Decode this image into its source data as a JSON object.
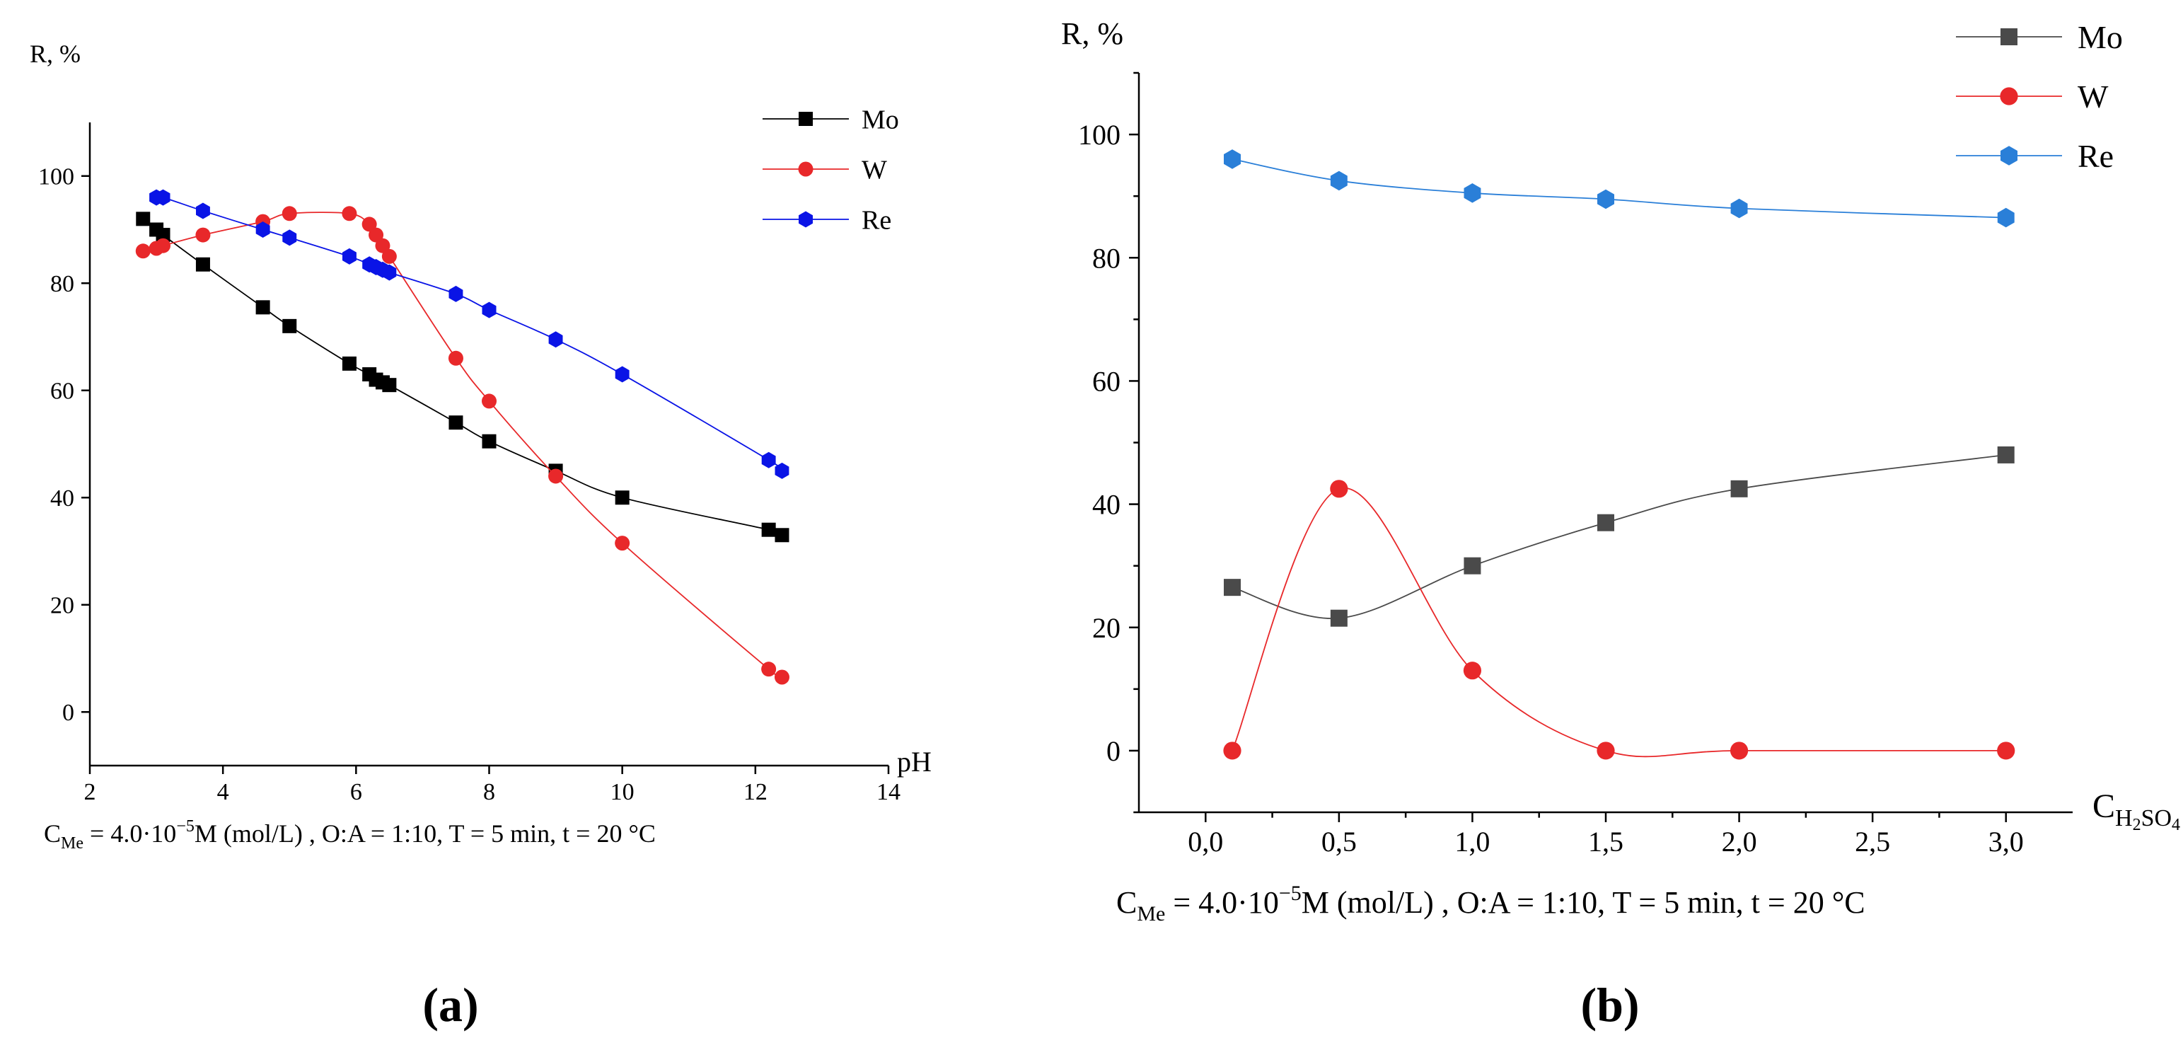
{
  "colors": {
    "mo_a": "#000000",
    "mo_b": "#4a4a4a",
    "w": "#e8282a",
    "re_a": "#0a14e6",
    "re_b": "#2a7fd8",
    "axis": "#000000"
  },
  "panel_a": {
    "caption": "(a)",
    "conditions": {
      "c_prefix": "C",
      "c_sub": "Me",
      "c_mid": " = 4.0·10",
      "c_sup": "−5",
      "c_rest": "M (mol/L) , O:A = 1:10, T = 5 min, t = 20 °C"
    }
  },
  "panel_b": {
    "caption": "(b)",
    "xlabel_main": "C",
    "xlabel_sub1": "H",
    "xlabel_sub2": "2",
    "xlabel_sub3": "SO",
    "xlabel_sub4": "4",
    "conditions": {
      "c_prefix": "C",
      "c_sub": "Me",
      "c_mid": " = 4.0·10",
      "c_sup": "−5",
      "c_rest": "M (mol/L) , O:A = 1:10, T = 5 min, t = 20 °C"
    }
  },
  "chart_data": [
    {
      "type": "line",
      "title": "",
      "xlabel": "pH",
      "ylabel": "R, %",
      "xlim": [
        2,
        14
      ],
      "ylim": [
        -10,
        110
      ],
      "xticks": [
        2,
        4,
        6,
        8,
        10,
        12,
        14
      ],
      "yticks": [
        0,
        20,
        40,
        60,
        80,
        100
      ],
      "xtick_labels": [
        "2",
        "4",
        "6",
        "8",
        "10",
        "12",
        "14"
      ],
      "ytick_labels": [
        "0",
        "20",
        "40",
        "60",
        "80",
        "100"
      ],
      "legend_position": "top-right",
      "grid": false,
      "series": [
        {
          "name": "Mo",
          "marker": "square",
          "x": [
            2.8,
            3.0,
            3.1,
            3.7,
            4.6,
            5.0,
            5.9,
            6.2,
            6.3,
            6.4,
            6.5,
            7.5,
            8.0,
            9.0,
            10.0,
            12.2,
            12.4
          ],
          "y": [
            92,
            90,
            89,
            83.5,
            75.5,
            72,
            65,
            63,
            62,
            61.5,
            61,
            54,
            50.5,
            45,
            40,
            34,
            33
          ]
        },
        {
          "name": "W",
          "marker": "circle",
          "x": [
            2.8,
            3.0,
            3.1,
            3.7,
            4.6,
            5.0,
            5.9,
            6.2,
            6.3,
            6.4,
            6.5,
            7.5,
            8.0,
            9.0,
            10.0,
            12.2,
            12.4
          ],
          "y": [
            86,
            86.5,
            87,
            89,
            91.5,
            93,
            93,
            91,
            89,
            87,
            85,
            66,
            58,
            44,
            31.5,
            8,
            6.5
          ]
        },
        {
          "name": "Re",
          "marker": "hexagon",
          "x": [
            3.0,
            3.1,
            3.7,
            4.6,
            5.0,
            5.9,
            6.2,
            6.3,
            6.4,
            6.5,
            7.5,
            8.0,
            9.0,
            10.0,
            12.2,
            12.4
          ],
          "y": [
            96,
            96,
            93.5,
            90,
            88.5,
            85,
            83.5,
            83,
            82.5,
            82,
            78,
            75,
            69.5,
            63,
            47,
            45
          ]
        }
      ]
    },
    {
      "type": "line",
      "title": "",
      "xlabel": "C H2SO4",
      "ylabel": "R, %",
      "xlim": [
        -0.25,
        3.25
      ],
      "ylim": [
        -10,
        110
      ],
      "xticks": [
        0.0,
        0.5,
        1.0,
        1.5,
        2.0,
        2.5,
        3.0
      ],
      "yticks": [
        0,
        20,
        40,
        60,
        80,
        100
      ],
      "xtick_labels": [
        "0,0",
        "0,5",
        "1,0",
        "1,5",
        "2,0",
        "2,5",
        "3,0"
      ],
      "ytick_labels": [
        "0",
        "20",
        "40",
        "60",
        "80",
        "100"
      ],
      "legend_position": "top-right",
      "grid": false,
      "series": [
        {
          "name": "Mo",
          "marker": "square",
          "x": [
            0.1,
            0.5,
            1.0,
            1.5,
            2.0,
            3.0
          ],
          "y": [
            26.5,
            21.5,
            30,
            37,
            42.5,
            48
          ]
        },
        {
          "name": "W",
          "marker": "circle",
          "x": [
            0.1,
            0.5,
            1.0,
            1.5,
            2.0,
            3.0
          ],
          "y": [
            0,
            42.5,
            13,
            0,
            0,
            0
          ]
        },
        {
          "name": "Re",
          "marker": "hexagon",
          "x": [
            0.1,
            0.5,
            1.0,
            1.5,
            2.0,
            3.0
          ],
          "y": [
            96,
            92.5,
            90.5,
            89.5,
            88,
            86.5
          ]
        }
      ]
    }
  ]
}
